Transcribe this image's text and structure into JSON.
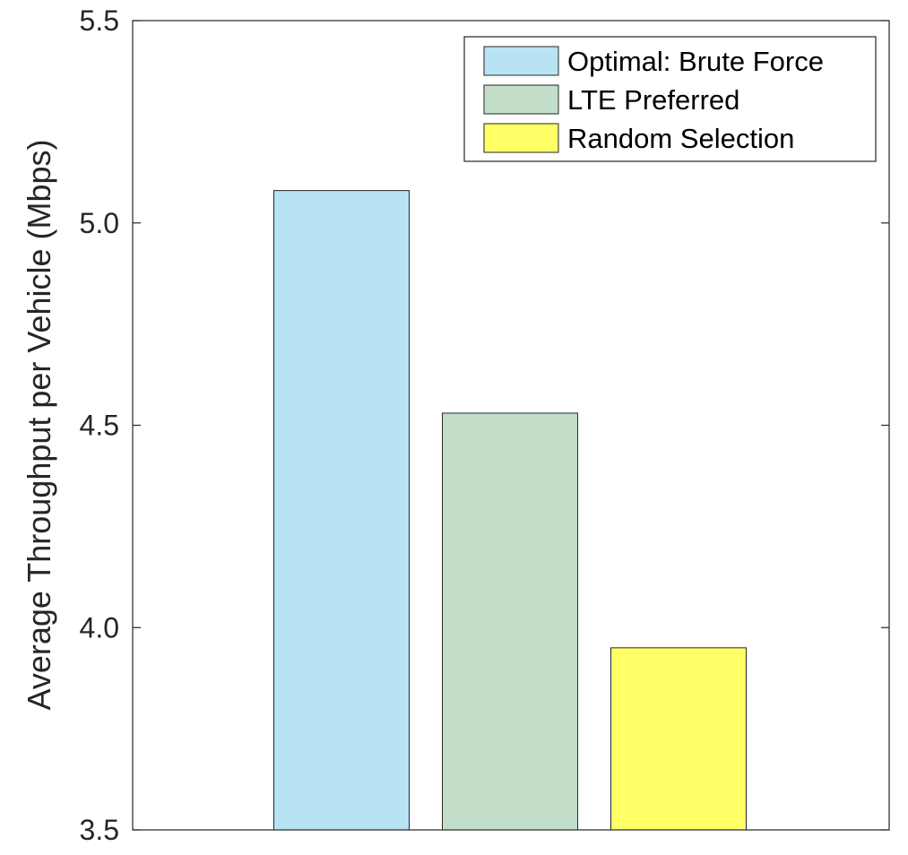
{
  "chart_data": {
    "type": "bar",
    "title": "",
    "xlabel": "",
    "ylabel": "Average Throughput per Vehicle (Mbps)",
    "ylim": [
      3.5,
      5.5
    ],
    "yticks": [
      "3.5",
      "4.0",
      "4.5",
      "5.0",
      "5.5"
    ],
    "grid": false,
    "legend_position": "top-right",
    "series": [
      {
        "name": "Optimal: Brute Force",
        "value": 5.08,
        "color": "#b7e3f3"
      },
      {
        "name": "LTE Preferred",
        "value": 4.53,
        "color": "#c3dec8"
      },
      {
        "name": "Random Selection",
        "value": 3.95,
        "color": "#ffff66"
      }
    ]
  }
}
